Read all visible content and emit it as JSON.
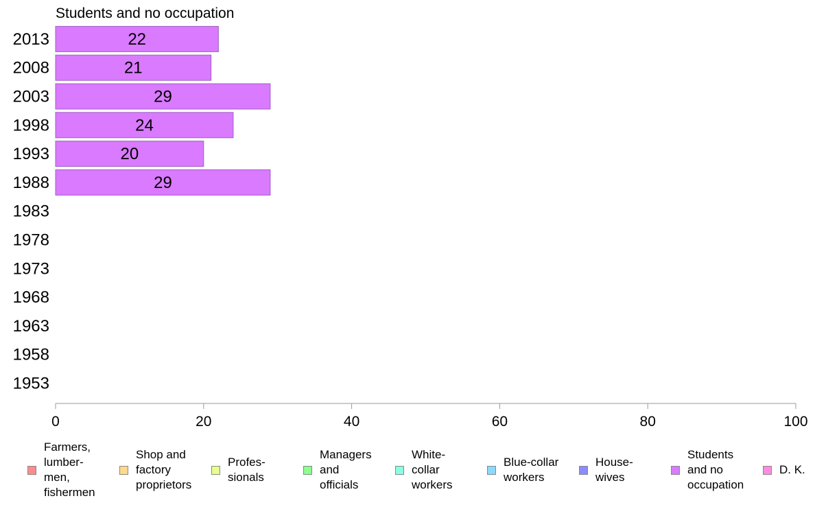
{
  "chart_data": {
    "type": "bar",
    "orientation": "horizontal",
    "title": "Students and no occupation",
    "categories": [
      "2013",
      "2008",
      "2003",
      "1998",
      "1993",
      "1988",
      "1983",
      "1978",
      "1973",
      "1968",
      "1963",
      "1958",
      "1953"
    ],
    "series": [
      {
        "name": "Students and no occupation",
        "color": "#d97aff",
        "values": [
          22,
          21,
          29,
          24,
          20,
          29,
          null,
          null,
          null,
          null,
          null,
          null,
          null
        ],
        "labels": [
          "22",
          "21",
          "29",
          "24",
          "20",
          "29",
          "",
          "",
          "",
          "",
          "",
          "",
          ""
        ]
      }
    ],
    "xlim": [
      0,
      100
    ],
    "xticks": [
      "0",
      "20",
      "40",
      "60",
      "80",
      "100"
    ],
    "xlabel": "",
    "ylabel": "",
    "grid": false,
    "legend_position": "bottom",
    "legend": [
      {
        "label": "Farmers,\nlumber-\nmen,\nfishermen",
        "color": "#ff8c8c"
      },
      {
        "label": "Shop and\nfactory\nproprietors",
        "color": "#ffd98c"
      },
      {
        "label": "Profes-\nsionals",
        "color": "#e8ff8c"
      },
      {
        "label": "Managers\nand\nofficials",
        "color": "#8cff8c"
      },
      {
        "label": "White-\ncollar\nworkers",
        "color": "#8cffe0"
      },
      {
        "label": "Blue-collar\nworkers",
        "color": "#8cd9ff"
      },
      {
        "label": "House-\nwives",
        "color": "#8c8cff"
      },
      {
        "label": "Students\nand no\noccupation",
        "color": "#d97aff"
      },
      {
        "label": "D. K.",
        "color": "#ff8ce0"
      }
    ]
  }
}
